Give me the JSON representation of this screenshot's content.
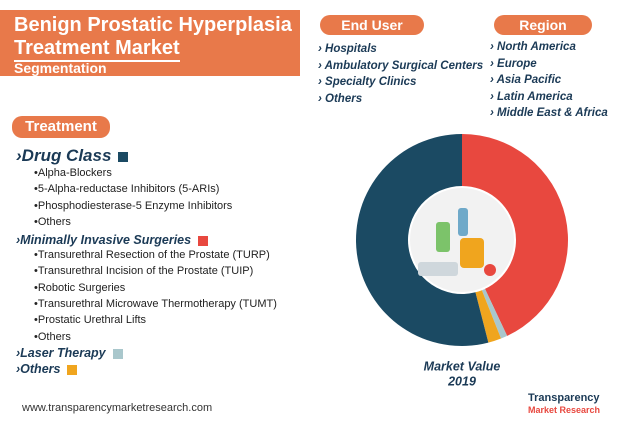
{
  "header": {
    "title_line1": "Benign Prostatic Hyperplasia",
    "title_line2": "Treatment Market",
    "subtitle": "Segmentation"
  },
  "end_user": {
    "title": "End User",
    "items": [
      "Hospitals",
      "Ambulatory Surgical Centers",
      "Specialty Clinics",
      "Others"
    ]
  },
  "region": {
    "title": "Region",
    "items": [
      "North America",
      "Europe",
      "Asia Pacific",
      "Latin America",
      "Middle East & Africa"
    ]
  },
  "treatment": {
    "title": "Treatment",
    "drug_class_items": [
      "Alpha-Blockers",
      "5-Alpha-reductase Inhibitors (5-ARIs)",
      "Phosphodiesterase-5 Enzyme Inhibitors",
      "Others"
    ],
    "mis_items": [
      "Transurethral Resection of the Prostate (TURP)",
      "Transurethral Incision of the Prostate (TUIP)",
      "Robotic Surgeries",
      "Transurethral Microwave Thermotherapy (TUMT)",
      "Prostatic Urethral Lifts",
      "Others"
    ]
  },
  "chart_data": {
    "type": "pie",
    "donut": true,
    "title": "Market Value",
    "subtitle": "2019",
    "categories": [
      "Drug Class",
      "Minimally Invasive Surgeries",
      "Laser Therapy",
      "Others"
    ],
    "values": [
      54,
      43,
      1,
      2
    ],
    "colors": [
      "#1b4a63",
      "#e8483f",
      "#a9c7cc",
      "#f0a51e"
    ]
  },
  "footer": {
    "url": "www.transparencymarketresearch.com",
    "logo_line1": "Transparency",
    "logo_line2": "Market Research"
  }
}
